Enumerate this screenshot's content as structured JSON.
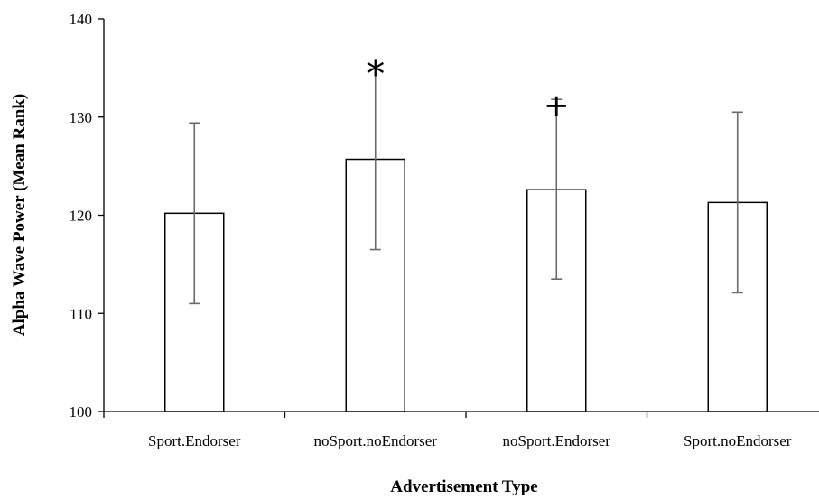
{
  "chart_data": {
    "type": "bar",
    "title": "",
    "xlabel": "Advertisement Type",
    "ylabel": "Alpha Wave Power (Mean Rank)",
    "ylim": [
      100,
      140
    ],
    "yticks": [
      100,
      110,
      120,
      130,
      140
    ],
    "ytick_labels": [
      "100",
      "110",
      "120",
      "130",
      "140"
    ],
    "categories": [
      "Sport.Endorser",
      "noSport.noEndorser",
      "noSport.Endorser",
      "Sport.noEndorser"
    ],
    "values": [
      120.2,
      125.7,
      122.6,
      121.3
    ],
    "error_bars": {
      "upper": [
        129.4,
        134.9,
        131.8,
        130.5
      ],
      "lower": [
        111.0,
        116.5,
        113.5,
        112.1
      ]
    },
    "annotations": [
      "",
      "*",
      "+",
      ""
    ],
    "grid": false,
    "legend": "none"
  }
}
